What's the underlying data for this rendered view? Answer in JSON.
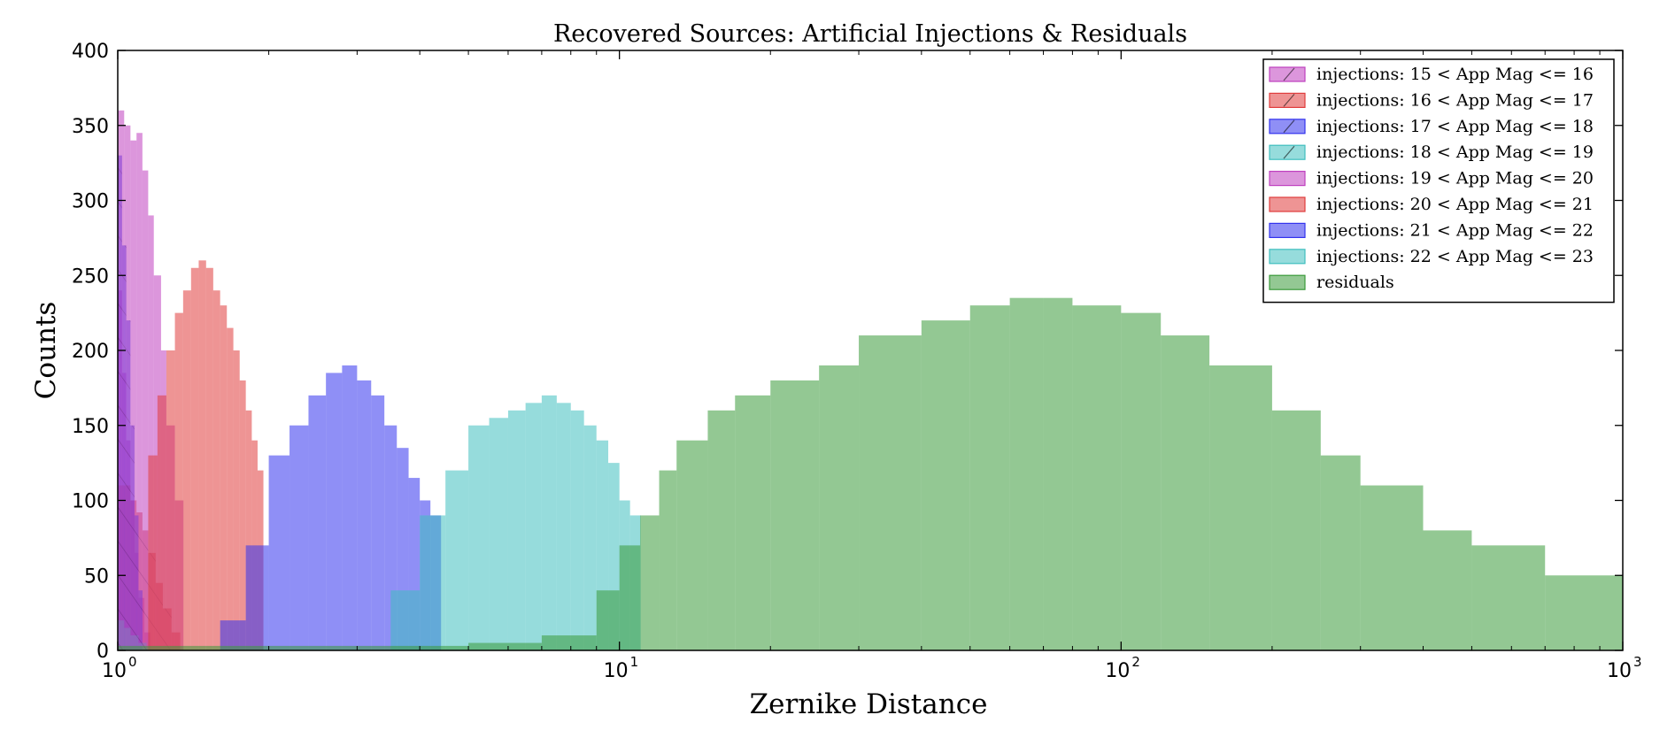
{
  "chart_data": {
    "type": "bar",
    "title": "Recovered Sources: Artificial Injections & Residuals",
    "xlabel": "Zernike Distance",
    "ylabel": "Counts",
    "xscale": "log",
    "xlim": [
      1,
      1000
    ],
    "ylim": [
      0,
      400
    ],
    "x_tick_base": "10",
    "x_tick_exponents": [
      "0",
      "1",
      "2",
      "3"
    ],
    "y_ticks": [
      "0",
      "50",
      "100",
      "150",
      "200",
      "250",
      "300",
      "350",
      "400"
    ],
    "grid": false,
    "legend_position": "top-right",
    "series": [
      {
        "name": "injections: 15 < App Mag <= 16",
        "color": "#bf40bf",
        "hatch": true,
        "x": [
          1.0,
          1.02,
          1.04,
          1.06,
          1.08,
          1.1,
          1.13
        ],
        "values": [
          240,
          185,
          140,
          100,
          65,
          35,
          12
        ]
      },
      {
        "name": "injections: 16 < App Mag <= 17",
        "color": "#e03c3c",
        "hatch": true,
        "x": [
          1.0,
          1.03,
          1.06,
          1.09,
          1.12,
          1.15,
          1.19,
          1.23,
          1.28
        ],
        "values": [
          110,
          110,
          100,
          92,
          80,
          65,
          45,
          28,
          12
        ]
      },
      {
        "name": "injections: 17 < App Mag <= 18",
        "color": "#3333ee",
        "hatch": true,
        "x": [
          1.0,
          1.02,
          1.04,
          1.06,
          1.08,
          1.1
        ],
        "values": [
          330,
          270,
          220,
          150,
          90,
          40
        ]
      },
      {
        "name": "injections: 18 < App Mag <= 19",
        "color": "#3fbfbf",
        "hatch": true,
        "x": [
          1.0,
          1.03,
          1.06,
          1.1
        ],
        "values": [
          20,
          15,
          10,
          5
        ]
      },
      {
        "name": "injections: 19 < App Mag <= 20",
        "color": "#bf40bf",
        "hatch": false,
        "x": [
          1.0,
          1.03,
          1.06,
          1.09,
          1.12,
          1.15,
          1.18,
          1.22,
          1.25,
          1.3
        ],
        "values": [
          360,
          350,
          340,
          345,
          320,
          290,
          250,
          200,
          150,
          100
        ]
      },
      {
        "name": "injections: 20 < App Mag <= 21",
        "color": "#e03c3c",
        "hatch": false,
        "x": [
          1.15,
          1.2,
          1.25,
          1.3,
          1.35,
          1.4,
          1.45,
          1.5,
          1.55,
          1.6,
          1.65,
          1.7,
          1.75,
          1.8,
          1.85,
          1.9
        ],
        "values": [
          130,
          170,
          200,
          225,
          240,
          255,
          260,
          255,
          240,
          230,
          215,
          200,
          180,
          160,
          140,
          120
        ]
      },
      {
        "name": "injections: 21 < App Mag <= 22",
        "color": "#3333ee",
        "hatch": false,
        "x": [
          1.6,
          1.8,
          2.0,
          2.2,
          2.4,
          2.6,
          2.8,
          3.0,
          3.2,
          3.4,
          3.6,
          3.8,
          4.0,
          4.2
        ],
        "values": [
          20,
          70,
          130,
          150,
          170,
          185,
          190,
          180,
          170,
          150,
          135,
          115,
          100,
          90
        ]
      },
      {
        "name": "injections: 22 < App Mag <= 23",
        "color": "#3fbfbf",
        "hatch": false,
        "x": [
          3.5,
          4,
          4.5,
          5,
          5.5,
          6,
          6.5,
          7,
          7.5,
          8,
          8.5,
          9,
          9.5,
          10,
          10.5
        ],
        "values": [
          40,
          90,
          120,
          150,
          155,
          160,
          165,
          170,
          165,
          160,
          150,
          140,
          125,
          100,
          90
        ]
      },
      {
        "name": "residuals",
        "color": "#3a9a3a",
        "hatch": false,
        "x": [
          1.0,
          1.5,
          2.0,
          3.0,
          5.0,
          7.0,
          9.0,
          10.0,
          11.0,
          12.0,
          13.0,
          15.0,
          17.0,
          20.0,
          25.0,
          30.0,
          40.0,
          50.0,
          60.0,
          70.0,
          80.0,
          100.0,
          120.0,
          150.0,
          200.0,
          250.0,
          300.0,
          400.0,
          500.0,
          700.0,
          1000.0
        ],
        "values": [
          3,
          3,
          3,
          3,
          5,
          10,
          40,
          70,
          90,
          120,
          140,
          160,
          170,
          180,
          190,
          210,
          220,
          230,
          235,
          235,
          230,
          225,
          210,
          190,
          160,
          130,
          110,
          80,
          70,
          50,
          35
        ]
      }
    ]
  }
}
